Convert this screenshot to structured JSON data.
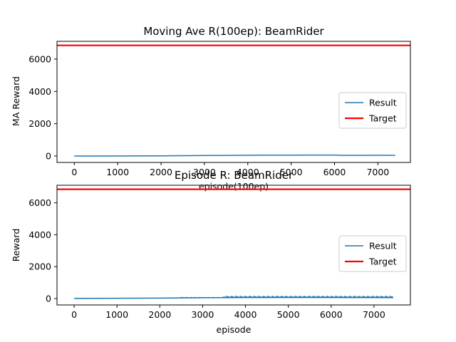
{
  "chart_data": [
    {
      "type": "line",
      "title": "Moving Ave R(100ep): BeamRider",
      "xlabel": "episode(100ep)",
      "ylabel": "MA Reward",
      "xlim": [
        -400,
        7750
      ],
      "ylim": [
        -400,
        7100
      ],
      "x_ticks": [
        0,
        1000,
        2000,
        3000,
        4000,
        5000,
        6000,
        7000
      ],
      "y_ticks": [
        0,
        2000,
        4000,
        6000
      ],
      "legend_position": "center-right",
      "series": [
        {
          "name": "Result",
          "color": "#1f77b4",
          "x": [
            0,
            1000,
            2000,
            2500,
            3000,
            3500,
            4000,
            4500,
            5000,
            5500,
            6000,
            6200,
            6500,
            7000,
            7400
          ],
          "y": [
            -5,
            0,
            10,
            18,
            30,
            38,
            45,
            50,
            55,
            60,
            58,
            40,
            42,
            45,
            42
          ]
        },
        {
          "name": "Target",
          "color": "#ff0000",
          "x": [
            -400,
            7750
          ],
          "y": [
            6850,
            6850
          ]
        }
      ]
    },
    {
      "type": "line",
      "title": "Episode R: BeamRider",
      "xlabel": "episode",
      "ylabel": "Reward",
      "xlim": [
        -400,
        7850
      ],
      "ylim": [
        -400,
        7100
      ],
      "x_ticks": [
        0,
        1000,
        2000,
        3000,
        4000,
        5000,
        6000,
        7000
      ],
      "y_ticks": [
        0,
        2000,
        4000,
        6000
      ],
      "legend_position": "center-right",
      "series": [
        {
          "name": "Result",
          "color": "#1f77b4",
          "x": [
            0,
            500,
            1000,
            1500,
            2000,
            2500,
            3000,
            3500,
            4000,
            4500,
            5000,
            5500,
            6000,
            6500,
            7000,
            7450
          ],
          "y": [
            10,
            15,
            20,
            25,
            30,
            40,
            50,
            60,
            70,
            70,
            75,
            75,
            70,
            65,
            65,
            60
          ]
        },
        {
          "name": "Target",
          "color": "#ff0000",
          "x": [
            -400,
            7850
          ],
          "y": [
            6850,
            6850
          ]
        }
      ]
    }
  ]
}
